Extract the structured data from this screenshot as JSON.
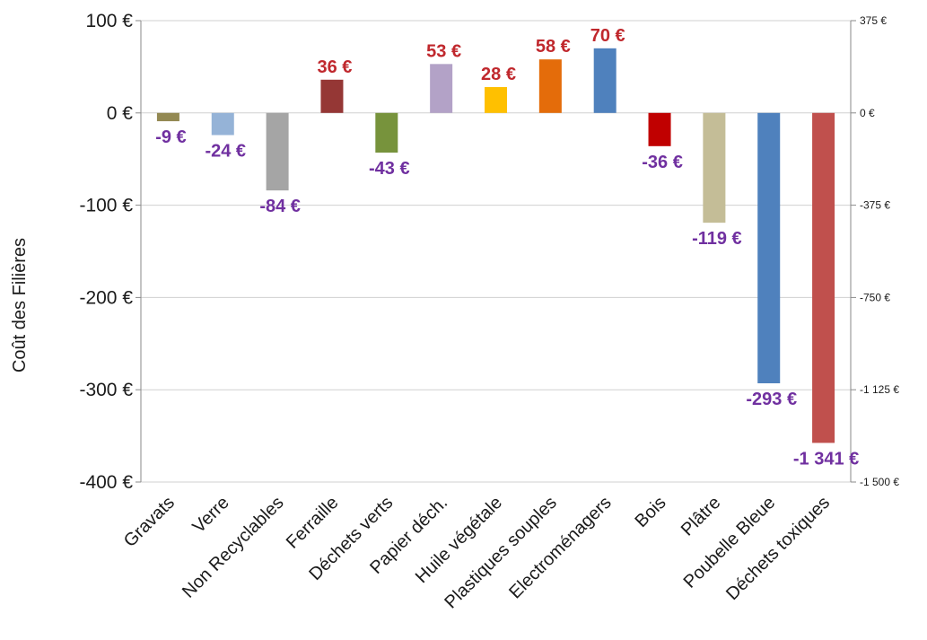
{
  "chart_data": {
    "type": "bar",
    "title": "",
    "xlabel": "",
    "ylabel": "Coût des Filières",
    "categories": [
      "Gravats",
      "Verre",
      "Non Recyclables",
      "Ferraille",
      "Déchets verts",
      "Papier déch.",
      "Huile végétale",
      "Plastiques souples",
      "Electroménagers",
      "Bois",
      "Plâtre",
      "Poubelle Bleue",
      "Déchets  toxiques"
    ],
    "values": [
      -9,
      -24,
      -84,
      36,
      -43,
      53,
      28,
      58,
      70,
      -36,
      -119,
      -293,
      -1341
    ],
    "axis_assignment": [
      "left",
      "left",
      "left",
      "left",
      "left",
      "left",
      "left",
      "left",
      "left",
      "left",
      "left",
      "left",
      "right"
    ],
    "value_labels": [
      "-9 €",
      "-24 €",
      "-84 €",
      "36 €",
      "-43 €",
      "53 €",
      "28 €",
      "58 €",
      "70 €",
      "-36 €",
      "-119 €",
      "-293 €",
      "-1 341 €"
    ],
    "bar_colors": [
      "#938953",
      "#95b3d7",
      "#a5a5a5",
      "#953735",
      "#77933c",
      "#b3a2c7",
      "#ffc000",
      "#e46c0a",
      "#4f81bd",
      "#c00000",
      "#c4bd97",
      "#4f81bd",
      "#c0504d"
    ],
    "label_colors": {
      "positive": "#c0282d",
      "negative": "#7030a0"
    },
    "ylim": [
      -400,
      100
    ],
    "y2lim": [
      -1500,
      375
    ],
    "yticks": [
      100,
      0,
      -100,
      -200,
      -300,
      -400
    ],
    "ytick_labels": [
      "100 €",
      "0 €",
      "-100 €",
      "-200 €",
      "-300 €",
      "-400 €"
    ],
    "y2ticks": [
      375,
      0,
      -375,
      -750,
      -1125,
      -1500
    ],
    "y2tick_labels": [
      "375 €",
      "0 €",
      "-375 €",
      "-750 €",
      "-1 125 €",
      "-1 500 €"
    ],
    "grid": true,
    "legend": "none"
  }
}
